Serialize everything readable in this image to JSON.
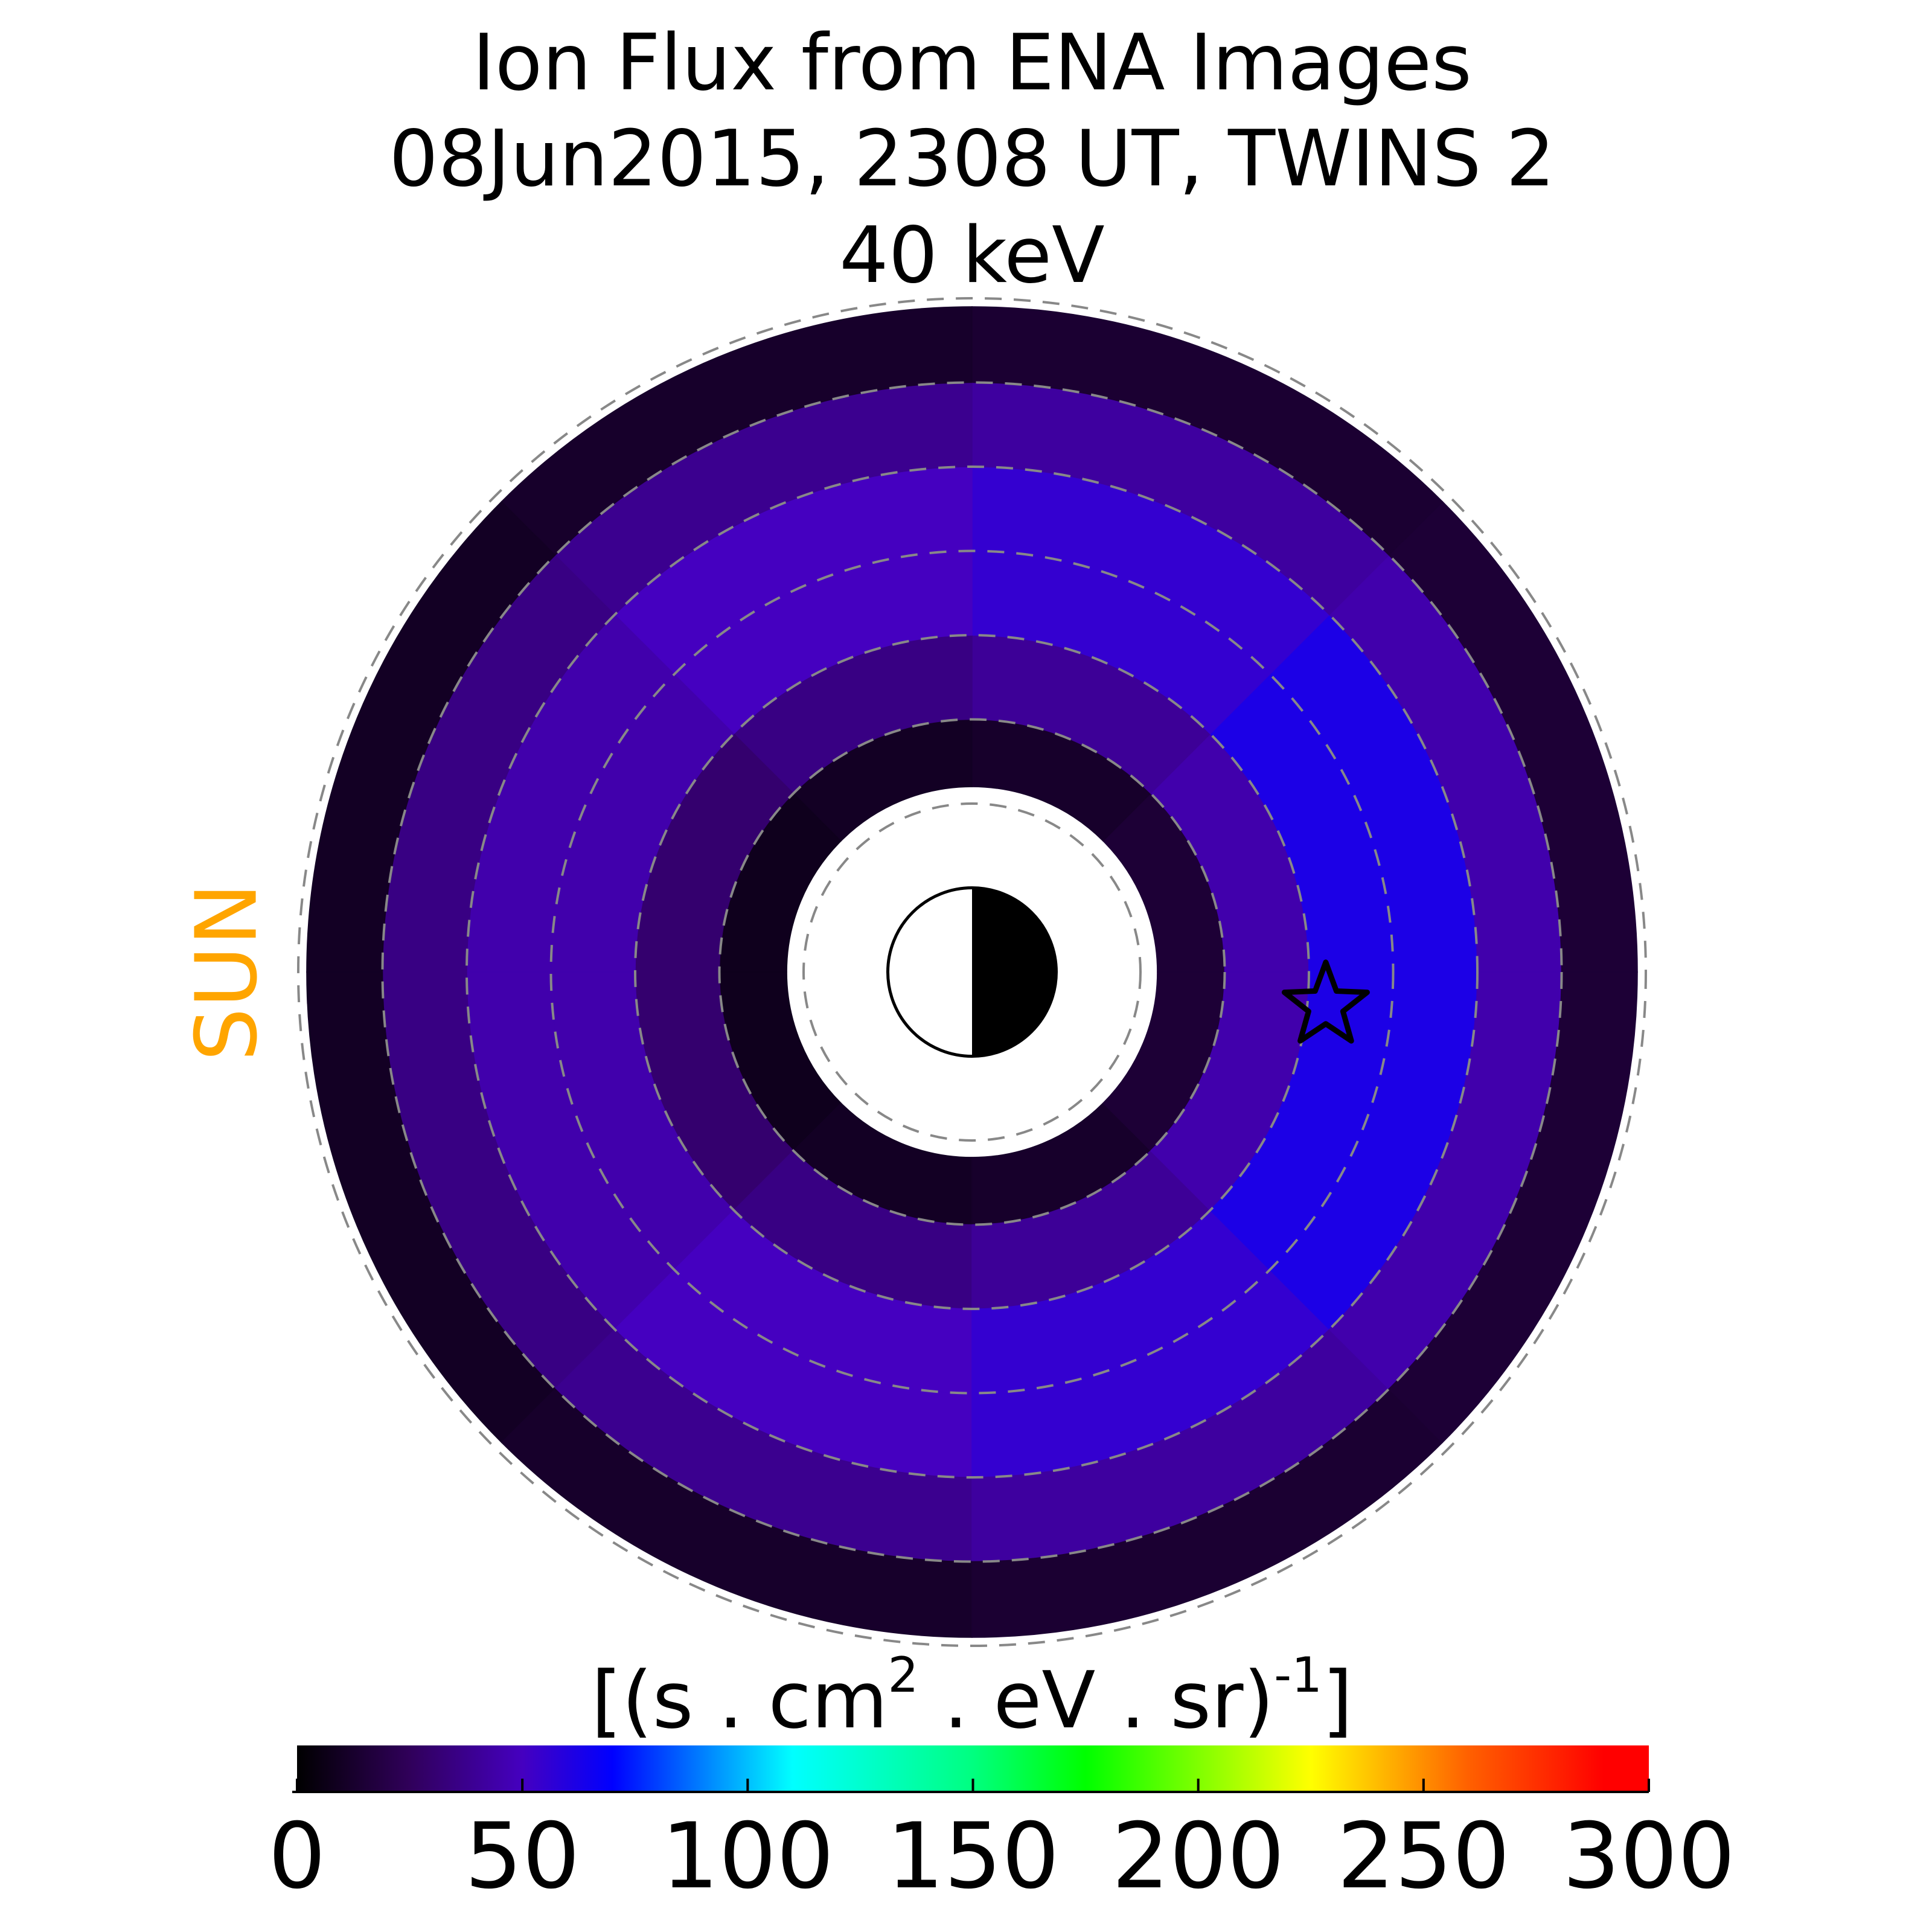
{
  "chart_data": {
    "type": "polar_heatmap",
    "title": [
      "Ion Flux from  ENA Images",
      "08Jun2015, 2308 UT,  TWINS 2",
      "40 keV"
    ],
    "sun_label": "SUN",
    "sun_color": "#ffa500",
    "r_bins": [
      2.2,
      3,
      4,
      5,
      6,
      7,
      7.9
    ],
    "theta_bins": [
      0,
      45,
      90,
      135,
      180,
      225,
      270,
      315,
      360
    ],
    "values": [
      [
        15,
        45,
        62,
        62,
        45,
        15
      ],
      [
        12,
        40,
        55,
        55,
        42,
        14
      ],
      [
        10,
        35,
        50,
        50,
        38,
        12
      ],
      [
        8,
        30,
        45,
        45,
        35,
        10
      ],
      [
        8,
        30,
        45,
        45,
        35,
        10
      ],
      [
        10,
        35,
        50,
        50,
        38,
        12
      ],
      [
        12,
        40,
        55,
        55,
        42,
        14
      ],
      [
        15,
        45,
        62,
        62,
        45,
        15
      ]
    ],
    "rticks": [
      2,
      3,
      4,
      5,
      6,
      7,
      8
    ],
    "grid": true,
    "peak": {
      "x": 4.2,
      "y": -0.4
    },
    "clim": [
      0,
      300
    ],
    "colormap": [
      {
        "value": 0,
        "color": "#000000"
      },
      {
        "value": 25,
        "color": "#30005a"
      },
      {
        "value": 50,
        "color": "#4500c0"
      },
      {
        "value": 70,
        "color": "#0000ff"
      },
      {
        "value": 110,
        "color": "#00ffff"
      },
      {
        "value": 150,
        "color": "#00ff80"
      },
      {
        "value": 175,
        "color": "#00ff00"
      },
      {
        "value": 225,
        "color": "#ffff00"
      },
      {
        "value": 260,
        "color": "#ff6000"
      },
      {
        "value": 290,
        "color": "#ff0000"
      },
      {
        "value": 300,
        "color": "#ff0000"
      }
    ],
    "colorbar_label": [
      "[(s . cm",
      "2",
      " . eV . sr)",
      "-1",
      "]"
    ],
    "colorbar_ticks": [
      0,
      50,
      100,
      150,
      200,
      250,
      300
    ]
  }
}
